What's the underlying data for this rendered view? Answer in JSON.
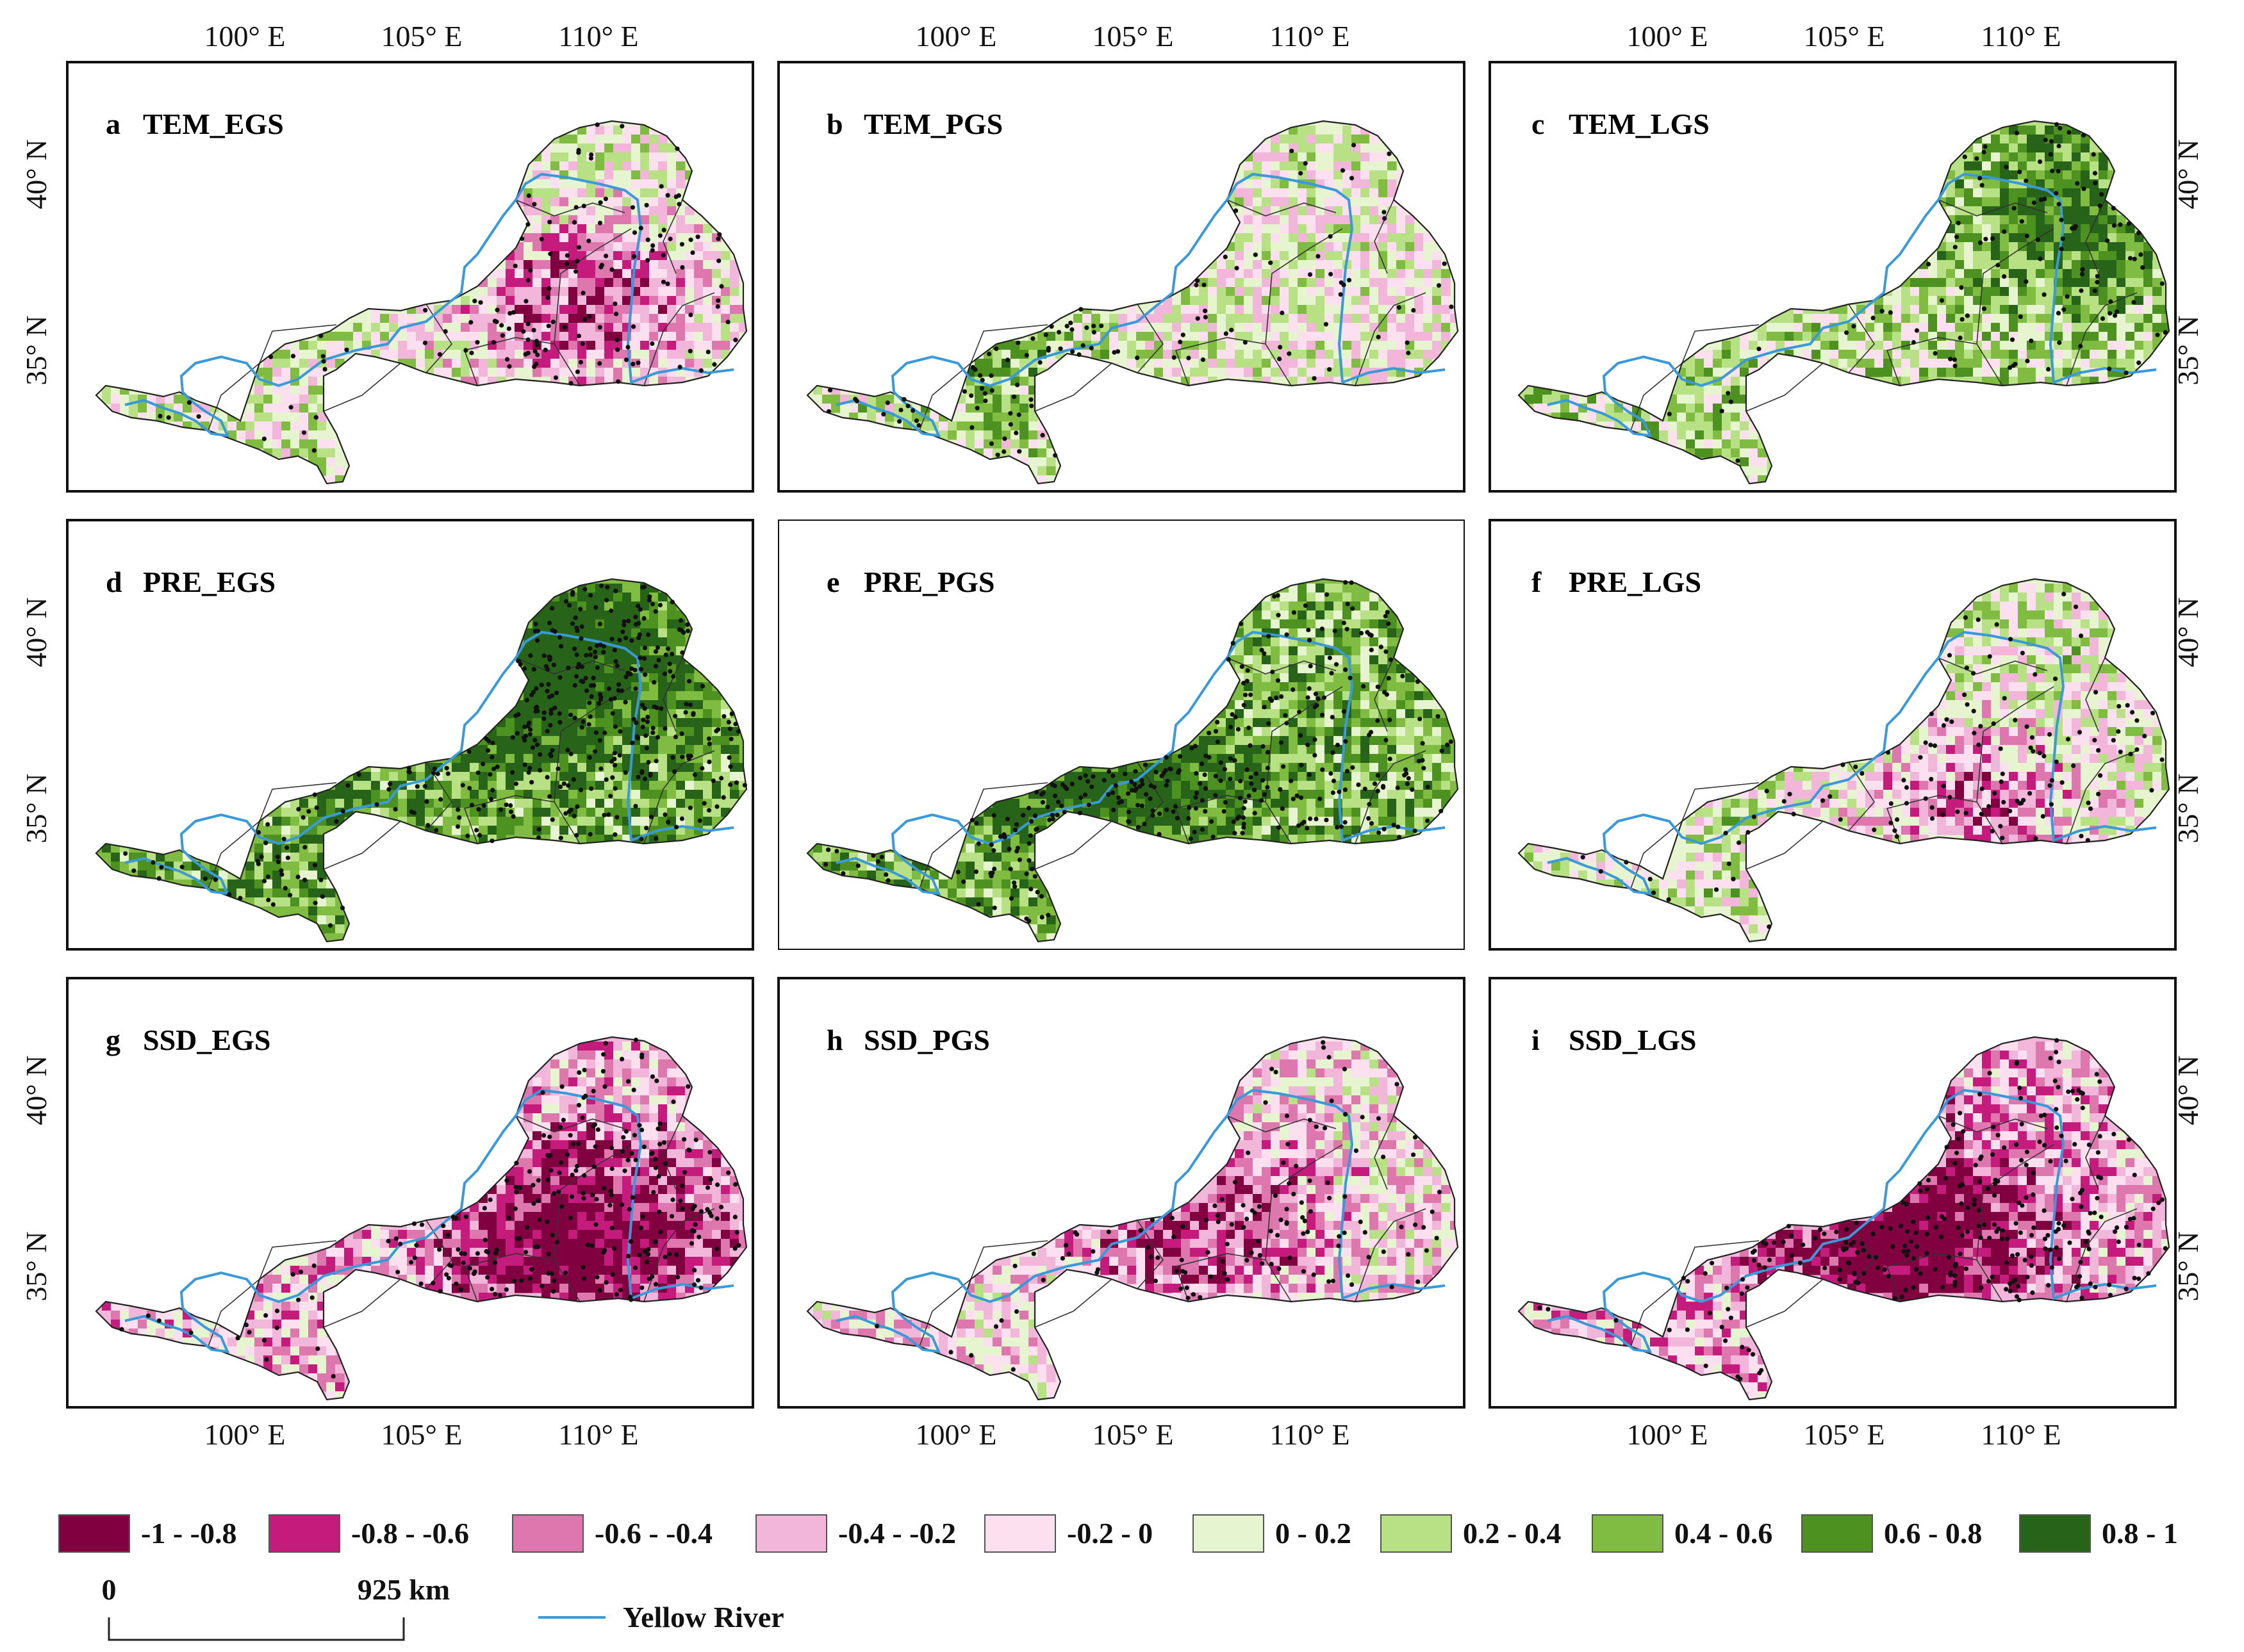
{
  "figure": {
    "panels": [
      {
        "letter": "a",
        "title": "TEM_EGS",
        "bias": 0.15,
        "seed": 11,
        "hot": [
          0.75,
          0.55,
          -0.8
        ],
        "dots": 150
      },
      {
        "letter": "b",
        "title": "TEM_PGS",
        "bias": 0.05,
        "seed": 23,
        "hot": [
          0.3,
          0.7,
          0.4
        ],
        "dots": 120
      },
      {
        "letter": "c",
        "title": "TEM_LGS",
        "bias": 0.25,
        "seed": 37,
        "hot": [
          0.85,
          0.35,
          0.6
        ],
        "dots": 120
      },
      {
        "letter": "d",
        "title": "PRE_EGS",
        "bias": 0.55,
        "seed": 41,
        "hot": [
          0.65,
          0.3,
          0.9
        ],
        "dots": 420
      },
      {
        "letter": "e",
        "title": "PRE_PGS",
        "bias": 0.45,
        "seed": 53,
        "hot": [
          0.45,
          0.55,
          0.85
        ],
        "dots": 360
      },
      {
        "letter": "f",
        "title": "PRE_LGS",
        "bias": 0.2,
        "seed": 67,
        "hot": [
          0.7,
          0.65,
          -0.7
        ],
        "dots": 130
      },
      {
        "letter": "g",
        "title": "SSD_EGS",
        "bias": -0.25,
        "seed": 71,
        "hot": [
          0.75,
          0.6,
          -0.85
        ],
        "dots": 260
      },
      {
        "letter": "h",
        "title": "SSD_PGS",
        "bias": -0.1,
        "seed": 83,
        "hot": [
          0.6,
          0.55,
          -0.6
        ],
        "dots": 130
      },
      {
        "letter": "i",
        "title": "SSD_LGS",
        "bias": -0.3,
        "seed": 97,
        "hot": [
          0.6,
          0.6,
          -0.9
        ],
        "dots": 280
      }
    ],
    "lon_labels": [
      "100° E",
      "105° E",
      "110° E"
    ],
    "lat_labels": [
      "40° N",
      "35° N"
    ]
  },
  "legend": {
    "classes": [
      {
        "label": "-1 - -0.8",
        "color": "#800040"
      },
      {
        "label": "-0.8 - -0.6",
        "color": "#c51b7d"
      },
      {
        "label": "-0.6 - -0.4",
        "color": "#de77ae"
      },
      {
        "label": "-0.4 - -0.2",
        "color": "#f1b6da"
      },
      {
        "label": "-0.2 - 0",
        "color": "#fde0ef"
      },
      {
        "label": "0 - 0.2",
        "color": "#e6f5d0"
      },
      {
        "label": "0.2 - 0.4",
        "color": "#b8e186"
      },
      {
        "label": "0.4 - 0.6",
        "color": "#7fbc41"
      },
      {
        "label": "0.6 - 0.8",
        "color": "#4d9221"
      },
      {
        "label": "0.8 - 1",
        "color": "#276419"
      }
    ],
    "scalebar": {
      "start": "0",
      "end": "925 km"
    },
    "river_label": "Yellow River",
    "river_color": "#3a9ad9"
  }
}
